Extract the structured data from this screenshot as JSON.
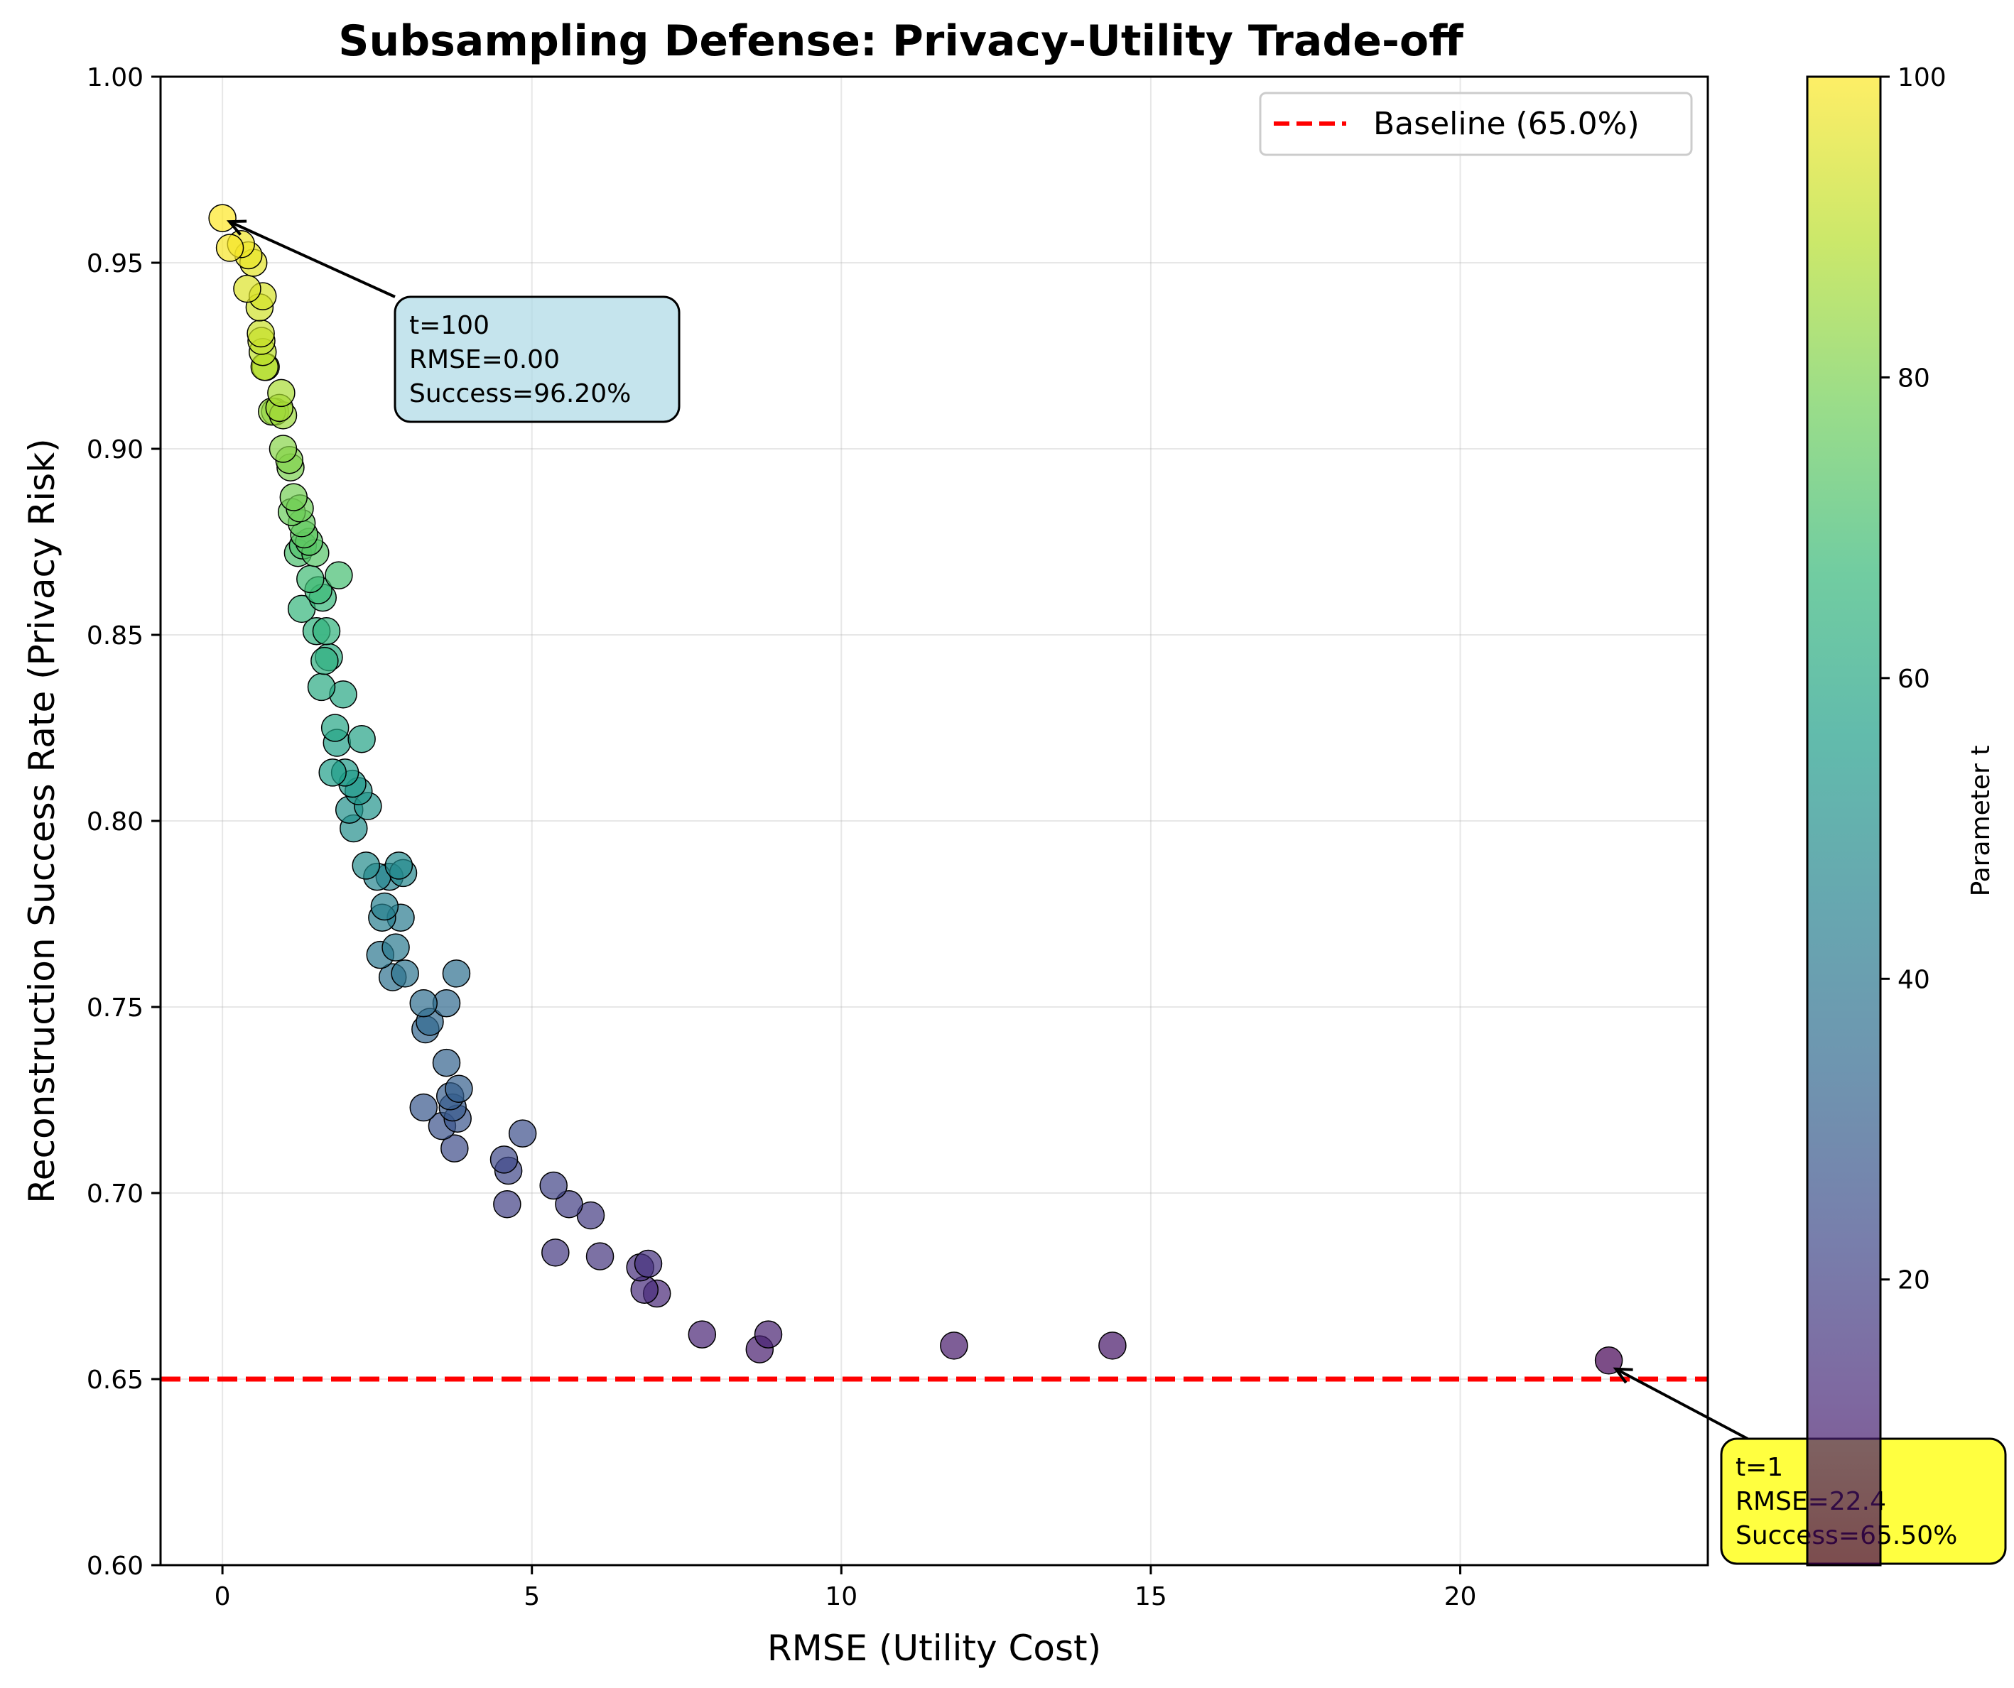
{
  "chart_data": {
    "type": "scatter",
    "title": "Subsampling Defense: Privacy-Utility Trade-off",
    "xlabel": "RMSE (Utility Cost)",
    "ylabel": "Reconstruction Success Rate (Privacy Risk)",
    "xlim": [
      -1,
      24
    ],
    "ylim": [
      0.6,
      1.0
    ],
    "x_ticks": [
      0,
      5,
      10,
      15,
      20
    ],
    "x_tick_labels": [
      "0",
      "5",
      "10",
      "15",
      "20"
    ],
    "y_ticks": [
      0.6,
      0.65,
      0.7,
      0.75,
      0.8,
      0.85,
      0.9,
      0.95,
      1.0
    ],
    "y_tick_labels": [
      "0.60",
      "0.65",
      "0.70",
      "0.75",
      "0.80",
      "0.85",
      "0.90",
      "0.95",
      "1.00"
    ],
    "grid": true,
    "colormap": "viridis",
    "colorbar": {
      "label": "Parameter t",
      "range": [
        1,
        100
      ],
      "ticks": [
        20,
        40,
        60,
        80,
        100
      ],
      "tick_labels": [
        "20",
        "40",
        "60",
        "80",
        "100"
      ]
    },
    "baseline": {
      "y": 0.65,
      "label": "Baseline (65.0%)",
      "color": "#ff0000",
      "style": "dashed"
    },
    "legend": {
      "position": "top-right",
      "entries": [
        "Baseline (65.0%)"
      ]
    },
    "annotations": [
      {
        "text_lines": [
          "t=100",
          "RMSE=0.00",
          "Success=96.20%"
        ],
        "point": [
          0.0,
          0.962
        ],
        "box_color": "#add8e6"
      },
      {
        "text_lines": [
          "t=1",
          "RMSE=22.4",
          "Success=65.50%"
        ],
        "point": [
          22.4,
          0.655
        ],
        "box_color": "#ffff00"
      }
    ],
    "points": [
      {
        "t": 100,
        "x": 0.0,
        "y": 0.962
      },
      {
        "t": 99,
        "x": 0.12,
        "y": 0.954
      },
      {
        "t": 98,
        "x": 0.3,
        "y": 0.955
      },
      {
        "t": 97,
        "x": 0.42,
        "y": 0.952
      },
      {
        "t": 96,
        "x": 0.5,
        "y": 0.95
      },
      {
        "t": 95,
        "x": 0.4,
        "y": 0.943
      },
      {
        "t": 94,
        "x": 0.65,
        "y": 0.941
      },
      {
        "t": 93,
        "x": 0.6,
        "y": 0.938
      },
      {
        "t": 92,
        "x": 0.62,
        "y": 0.931
      },
      {
        "t": 91,
        "x": 0.63,
        "y": 0.929
      },
      {
        "t": 90,
        "x": 0.65,
        "y": 0.926
      },
      {
        "t": 89,
        "x": 0.68,
        "y": 0.922
      },
      {
        "t": 88,
        "x": 0.7,
        "y": 0.922
      },
      {
        "t": 87,
        "x": 0.95,
        "y": 0.915
      },
      {
        "t": 86,
        "x": 0.92,
        "y": 0.911
      },
      {
        "t": 85,
        "x": 0.98,
        "y": 0.909
      },
      {
        "t": 84,
        "x": 0.8,
        "y": 0.91
      },
      {
        "t": 83,
        "x": 0.85,
        "y": 0.91
      },
      {
        "t": 82,
        "x": 0.98,
        "y": 0.9
      },
      {
        "t": 81,
        "x": 1.08,
        "y": 0.897
      },
      {
        "t": 80,
        "x": 1.1,
        "y": 0.895
      },
      {
        "t": 79,
        "x": 1.15,
        "y": 0.887
      },
      {
        "t": 78,
        "x": 1.25,
        "y": 0.884
      },
      {
        "t": 77,
        "x": 1.12,
        "y": 0.883
      },
      {
        "t": 76,
        "x": 1.28,
        "y": 0.88
      },
      {
        "t": 75,
        "x": 1.32,
        "y": 0.877
      },
      {
        "t": 74,
        "x": 1.4,
        "y": 0.875
      },
      {
        "t": 73,
        "x": 1.5,
        "y": 0.872
      },
      {
        "t": 72,
        "x": 1.3,
        "y": 0.874
      },
      {
        "t": 71,
        "x": 1.22,
        "y": 0.872
      },
      {
        "t": 70,
        "x": 1.88,
        "y": 0.866
      },
      {
        "t": 69,
        "x": 1.42,
        "y": 0.865
      },
      {
        "t": 68,
        "x": 1.55,
        "y": 0.862
      },
      {
        "t": 67,
        "x": 1.62,
        "y": 0.86
      },
      {
        "t": 66,
        "x": 1.28,
        "y": 0.857
      },
      {
        "t": 65,
        "x": 1.68,
        "y": 0.851
      },
      {
        "t": 64,
        "x": 1.52,
        "y": 0.851
      },
      {
        "t": 63,
        "x": 1.65,
        "y": 0.843
      },
      {
        "t": 62,
        "x": 1.72,
        "y": 0.844
      },
      {
        "t": 61,
        "x": 1.6,
        "y": 0.836
      },
      {
        "t": 60,
        "x": 1.95,
        "y": 0.834
      },
      {
        "t": 59,
        "x": 1.82,
        "y": 0.825
      },
      {
        "t": 58,
        "x": 2.25,
        "y": 0.822
      },
      {
        "t": 57,
        "x": 1.85,
        "y": 0.821
      },
      {
        "t": 56,
        "x": 1.78,
        "y": 0.813
      },
      {
        "t": 55,
        "x": 1.98,
        "y": 0.813
      },
      {
        "t": 54,
        "x": 2.1,
        "y": 0.81
      },
      {
        "t": 53,
        "x": 2.2,
        "y": 0.808
      },
      {
        "t": 52,
        "x": 2.35,
        "y": 0.804
      },
      {
        "t": 51,
        "x": 2.05,
        "y": 0.803
      },
      {
        "t": 50,
        "x": 2.12,
        "y": 0.798
      },
      {
        "t": 49,
        "x": 2.32,
        "y": 0.788
      },
      {
        "t": 48,
        "x": 2.85,
        "y": 0.788
      },
      {
        "t": 47,
        "x": 2.92,
        "y": 0.786
      },
      {
        "t": 46,
        "x": 2.5,
        "y": 0.785
      },
      {
        "t": 45,
        "x": 2.7,
        "y": 0.785
      },
      {
        "t": 44,
        "x": 2.62,
        "y": 0.777
      },
      {
        "t": 43,
        "x": 2.58,
        "y": 0.774
      },
      {
        "t": 42,
        "x": 2.88,
        "y": 0.774
      },
      {
        "t": 41,
        "x": 2.8,
        "y": 0.766
      },
      {
        "t": 40,
        "x": 2.55,
        "y": 0.764
      },
      {
        "t": 39,
        "x": 2.95,
        "y": 0.759
      },
      {
        "t": 38,
        "x": 2.75,
        "y": 0.758
      },
      {
        "t": 37,
        "x": 3.78,
        "y": 0.759
      },
      {
        "t": 36,
        "x": 3.25,
        "y": 0.751
      },
      {
        "t": 35,
        "x": 3.62,
        "y": 0.751
      },
      {
        "t": 34,
        "x": 3.35,
        "y": 0.746
      },
      {
        "t": 33,
        "x": 3.28,
        "y": 0.744
      },
      {
        "t": 32,
        "x": 3.62,
        "y": 0.735
      },
      {
        "t": 31,
        "x": 3.82,
        "y": 0.728
      },
      {
        "t": 30,
        "x": 3.68,
        "y": 0.726
      },
      {
        "t": 29,
        "x": 3.72,
        "y": 0.723
      },
      {
        "t": 28,
        "x": 3.25,
        "y": 0.723
      },
      {
        "t": 27,
        "x": 3.8,
        "y": 0.72
      },
      {
        "t": 26,
        "x": 3.55,
        "y": 0.718
      },
      {
        "t": 25,
        "x": 4.85,
        "y": 0.716
      },
      {
        "t": 24,
        "x": 3.75,
        "y": 0.712
      },
      {
        "t": 23,
        "x": 4.55,
        "y": 0.709
      },
      {
        "t": 22,
        "x": 4.62,
        "y": 0.706
      },
      {
        "t": 21,
        "x": 5.35,
        "y": 0.702
      },
      {
        "t": 20,
        "x": 4.6,
        "y": 0.697
      },
      {
        "t": 19,
        "x": 5.6,
        "y": 0.697
      },
      {
        "t": 18,
        "x": 5.95,
        "y": 0.694
      },
      {
        "t": 17,
        "x": 5.38,
        "y": 0.684
      },
      {
        "t": 16,
        "x": 6.1,
        "y": 0.683
      },
      {
        "t": 15,
        "x": 6.88,
        "y": 0.681
      },
      {
        "t": 14,
        "x": 6.75,
        "y": 0.68
      },
      {
        "t": 13,
        "x": 6.82,
        "y": 0.674
      },
      {
        "t": 12,
        "x": 7.02,
        "y": 0.673
      },
      {
        "t": 11,
        "x": 7.75,
        "y": 0.662
      },
      {
        "t": 10,
        "x": 8.82,
        "y": 0.662
      },
      {
        "t": 9,
        "x": 8.68,
        "y": 0.658
      },
      {
        "t": 8,
        "x": 11.82,
        "y": 0.659
      },
      {
        "t": 7,
        "x": 14.38,
        "y": 0.659
      },
      {
        "t": 1,
        "x": 22.4,
        "y": 0.655
      }
    ]
  }
}
